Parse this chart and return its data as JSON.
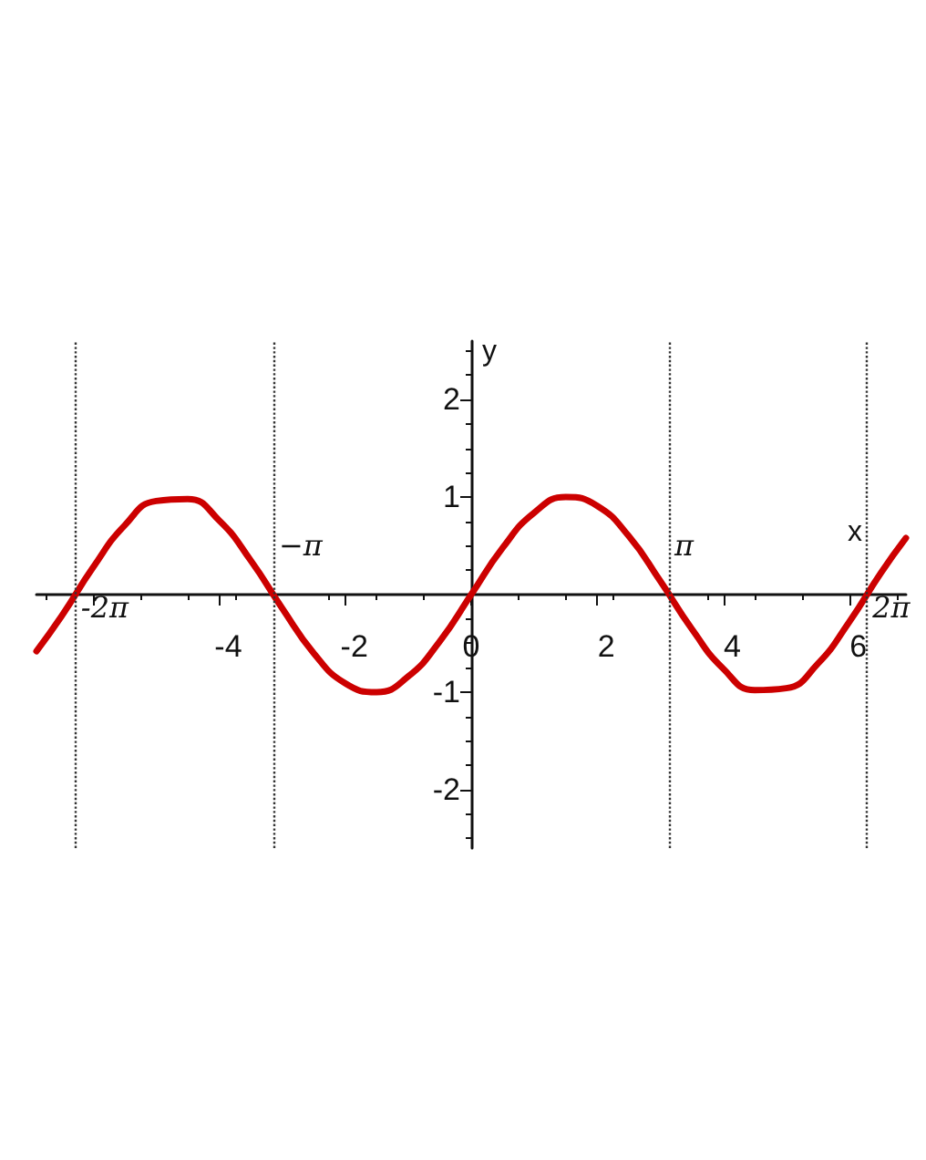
{
  "chart_data": {
    "type": "line",
    "xlabel": "x",
    "ylabel": "y",
    "xlim": [
      -6.9,
      6.9
    ],
    "ylim": [
      -2.6,
      2.6
    ],
    "xticks": [
      {
        "value": -6,
        "label": null
      },
      -4,
      -2,
      0,
      2,
      4,
      6
    ],
    "yticks": [
      -2,
      -1,
      1,
      2
    ],
    "x": [
      -6.9,
      -6.5,
      -6,
      -5.5,
      -5,
      -4.5,
      -4,
      -3.5,
      -3,
      -2.5,
      -2,
      -1.5,
      -1,
      -0.5,
      0,
      0.5,
      1,
      1.5,
      2,
      2.5,
      3,
      3.5,
      4,
      4.5,
      5,
      5.5,
      6,
      6.5,
      6.9
    ],
    "series": [
      {
        "color": "#cc0000",
        "values": [
          -0.58,
          -0.22,
          0.28,
          0.71,
          0.96,
          0.98,
          0.76,
          0.35,
          -0.14,
          -0.6,
          -0.91,
          -1.0,
          -0.84,
          -0.48,
          0,
          0.48,
          0.84,
          1.0,
          0.91,
          0.6,
          0.14,
          -0.35,
          -0.76,
          -0.98,
          -0.96,
          -0.71,
          -0.28,
          0.22,
          0.58
        ]
      }
    ],
    "ref_lines": [
      {
        "axis": "x",
        "value": -6.283,
        "label": "-2π",
        "line_style": "dotted"
      },
      {
        "axis": "x",
        "value": -3.142,
        "label": "−π",
        "line_style": "dotted"
      },
      {
        "axis": "x",
        "value": 3.142,
        "label": "π",
        "line_style": "dotted"
      },
      {
        "axis": "x",
        "value": 6.283,
        "label": "2π",
        "line_style": "dotted"
      }
    ],
    "marker": "none",
    "line_style": "solid"
  }
}
